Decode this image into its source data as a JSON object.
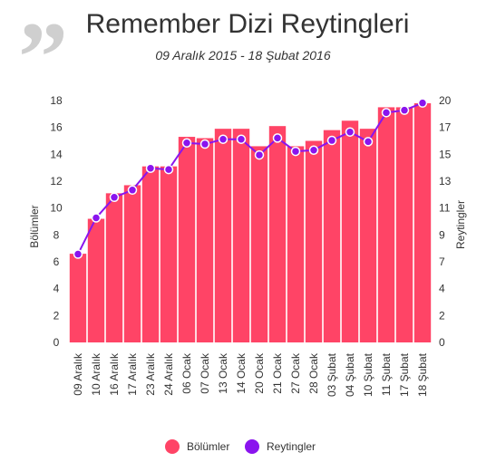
{
  "header": {
    "title": "Remember Dizi Reytingleri",
    "subtitle": "09 Aralık 2015 - 18 Şubat 2016",
    "quote_mark": "”"
  },
  "legend": {
    "items": [
      {
        "label": "Bölümler",
        "color": "#ff4466"
      },
      {
        "label": "Reytingler",
        "color": "#8a14ee"
      }
    ]
  },
  "chart_data": {
    "type": "bar+line",
    "categories": [
      "09 Aralık",
      "10 Aralık",
      "16 Aralık",
      "17 Aralık",
      "23 Aralık",
      "24 Aralık",
      "06 Ocak",
      "07 Ocak",
      "13 Ocak",
      "14 Ocak",
      "20 Ocak",
      "21 Ocak",
      "27 Ocak",
      "28 Ocak",
      "03 Şubat",
      "04 Şubat",
      "10 Şubat",
      "11 Şubat",
      "17 Şubat",
      "18 Şubat"
    ],
    "series": [
      {
        "name": "Bölümler",
        "type": "bar",
        "axis": "left",
        "color": "#ff4466",
        "values": [
          6.6,
          9.2,
          11.1,
          11.7,
          13.1,
          13.1,
          15.3,
          15.2,
          15.9,
          15.9,
          14.6,
          16.1,
          14.6,
          15.0,
          15.8,
          16.5,
          15.9,
          17.5,
          17.5,
          17.8
        ]
      },
      {
        "name": "Reytingler",
        "type": "line",
        "axis": "right",
        "color": "#8a14ee",
        "values": [
          7.3,
          10.3,
          12.0,
          12.6,
          14.4,
          14.3,
          16.5,
          16.4,
          16.8,
          16.8,
          15.5,
          16.9,
          15.8,
          15.9,
          16.7,
          17.4,
          16.6,
          19.0,
          19.2,
          19.8
        ]
      }
    ],
    "left_axis": {
      "label": "Bölümler",
      "ticks": [
        "0",
        "2",
        "4",
        "6",
        "8",
        "10",
        "12",
        "14",
        "16",
        "18"
      ],
      "min": 0,
      "max": 18
    },
    "right_axis": {
      "label": "Reytingler",
      "ticks": [
        "0",
        "2",
        "4",
        "7",
        "9",
        "11",
        "13",
        "15",
        "17",
        "20"
      ],
      "min": 0,
      "max": 20
    },
    "grid": false,
    "legend_position": "bottom"
  }
}
